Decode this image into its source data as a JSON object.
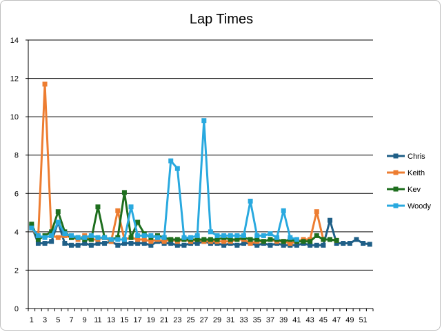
{
  "chart_data": {
    "type": "line",
    "title": "Lap Times",
    "xlabel": "",
    "ylabel": "",
    "ylim": [
      0,
      14
    ],
    "y_ticks": [
      0,
      2,
      4,
      6,
      8,
      10,
      12,
      14
    ],
    "x_count": 52,
    "x_tick_labels": [
      1,
      3,
      5,
      7,
      9,
      11,
      13,
      15,
      17,
      19,
      21,
      23,
      25,
      27,
      29,
      31,
      33,
      35,
      37,
      39,
      41,
      43,
      45,
      47,
      49,
      51
    ],
    "grid": "horizontal",
    "legend_position": "right",
    "series": [
      {
        "name": "Chris",
        "color": "#1f5f87",
        "values": [
          4.3,
          3.4,
          3.4,
          3.5,
          4.5,
          3.4,
          3.3,
          3.3,
          3.4,
          3.3,
          3.4,
          3.4,
          3.5,
          3.3,
          3.4,
          3.4,
          3.4,
          3.4,
          3.3,
          3.5,
          3.4,
          3.4,
          3.3,
          3.3,
          3.4,
          3.4,
          3.5,
          3.4,
          3.4,
          3.3,
          3.4,
          3.3,
          3.4,
          3.4,
          3.3,
          3.4,
          3.3,
          3.4,
          3.3,
          3.3,
          3.3,
          3.4,
          3.3,
          3.3,
          3.3,
          4.6,
          3.4,
          3.4,
          3.4,
          3.6,
          3.4,
          3.35
        ]
      },
      {
        "name": "Keith",
        "color": "#ed7d31",
        "values": [
          4.2,
          3.7,
          11.7,
          3.8,
          3.7,
          3.8,
          3.7,
          3.6,
          3.8,
          3.6,
          3.6,
          3.7,
          3.5,
          5.1,
          3.6,
          3.7,
          3.6,
          3.6,
          3.5,
          3.6,
          3.5,
          3.6,
          3.5,
          3.6,
          3.5,
          3.6,
          3.5,
          3.5,
          3.5,
          3.5,
          3.5,
          3.6,
          3.6,
          3.4,
          3.5,
          3.5,
          3.6,
          3.5,
          3.5,
          3.4,
          3.5,
          3.6,
          3.6,
          5.05,
          3.6,
          3.6,
          3.55
        ]
      },
      {
        "name": "Kev",
        "color": "#1e6e1e",
        "values": [
          4.4,
          3.6,
          3.8,
          4.0,
          5.05,
          4.0,
          3.7,
          3.7,
          3.6,
          3.6,
          5.3,
          3.7,
          3.6,
          3.7,
          6.05,
          3.7,
          4.5,
          3.9,
          3.7,
          3.8,
          3.7,
          3.6,
          3.6,
          3.6,
          3.6,
          3.6,
          3.6,
          3.6,
          3.6,
          3.7,
          3.6,
          3.6,
          3.7,
          3.6,
          3.6,
          3.5,
          3.6,
          3.6,
          3.5,
          3.6,
          3.5,
          3.5,
          3.5,
          3.8,
          3.6,
          3.6,
          3.55
        ]
      },
      {
        "name": "Woody",
        "color": "#29a9df",
        "values": [
          4.2,
          3.8,
          3.7,
          3.8,
          4.5,
          3.9,
          3.8,
          3.7,
          3.7,
          3.8,
          3.7,
          3.7,
          3.6,
          3.6,
          3.6,
          5.3,
          3.8,
          3.8,
          3.8,
          3.7,
          3.7,
          7.7,
          7.3,
          3.7,
          3.7,
          3.8,
          9.8,
          4.0,
          3.8,
          3.8,
          3.8,
          3.8,
          3.8,
          5.6,
          3.8,
          3.8,
          3.9,
          3.7,
          5.1,
          3.7,
          3.6
        ]
      }
    ]
  }
}
